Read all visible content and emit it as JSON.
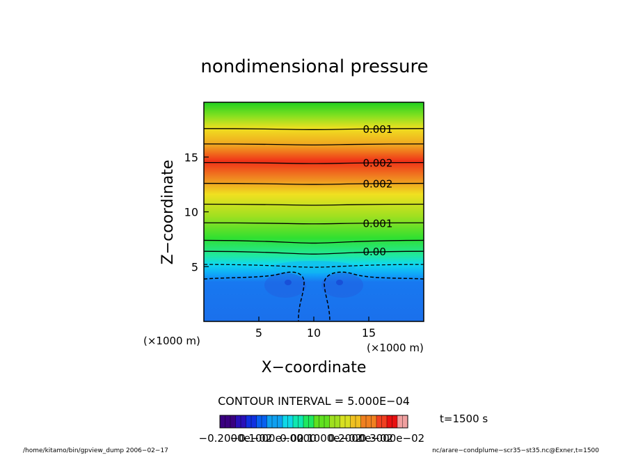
{
  "chart_data": {
    "type": "contour",
    "title": "nondimensional pressure",
    "xlabel": "X−coordinate",
    "ylabel": "Z−coordinate",
    "x_unit_label": "(×1000 m)",
    "z_unit_label": "(×1000 m)",
    "xlim": [
      0,
      20
    ],
    "ylim": [
      0,
      20
    ],
    "x_ticks": [
      5,
      10,
      15
    ],
    "y_ticks": [
      5,
      10,
      15
    ],
    "x_tick_labels": [
      "5",
      "10",
      "15"
    ],
    "y_tick_labels": [
      "5",
      "10",
      "15"
    ],
    "contour_interval_text": "CONTOUR INTERVAL = 5.000E−04",
    "contours": [
      {
        "z": 17.6,
        "level": 0.001
      },
      {
        "z": 16.2,
        "level": 0.0015
      },
      {
        "z": 14.5,
        "level": 0.002
      },
      {
        "z": 12.6,
        "level": 0.002
      },
      {
        "z": 10.7,
        "level": 0.0015
      },
      {
        "z": 9.0,
        "level": 0.001
      },
      {
        "z": 7.4,
        "level": 0.0005
      },
      {
        "z": 6.4,
        "level": 0.0
      },
      {
        "z": 5.2,
        "level": -0.0005
      }
    ],
    "contour_labels": [
      {
        "x": 14.3,
        "z": 17.6,
        "text": "0.001"
      },
      {
        "x": 14.3,
        "z": 14.5,
        "text": "0.002"
      },
      {
        "x": 14.3,
        "z": 12.6,
        "text": "0.002"
      },
      {
        "x": 14.3,
        "z": 9.0,
        "text": "0.001"
      },
      {
        "x": 14.0,
        "z": 6.4,
        "text": "0.00"
      }
    ],
    "colorbar": {
      "min": -0.002,
      "max": 0.0035,
      "colors": [
        "#3a0080",
        "#2a10b8",
        "#1030e0",
        "#0860f0",
        "#10a0f0",
        "#10d8e8",
        "#10e8b0",
        "#20e860",
        "#60e020",
        "#a0e020",
        "#d8e020",
        "#f0c020",
        "#f08020",
        "#f04020",
        "#e81010",
        "#f0a0a0"
      ],
      "tick_labels": [
        "−0.2000e−02",
        "−0.1000e−02",
        "0.0000",
        "0.1000e−02",
        "0.2000e−02",
        "0.3000e−02"
      ]
    },
    "time_text": "t=1500 s",
    "footer_left": "/home/kitamo/bin/gpview_dump  2006−02−17",
    "footer_right": "nc/arare−condplume−scr35−st35.nc@Exner,t=1500"
  }
}
